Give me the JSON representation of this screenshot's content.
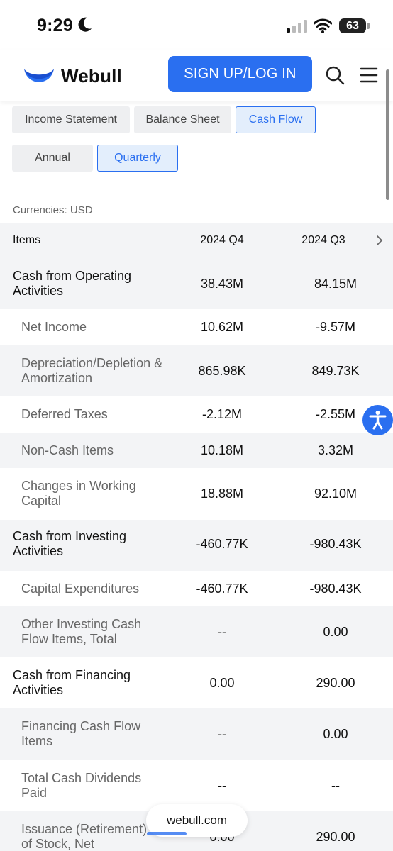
{
  "status_bar": {
    "time": "9:29",
    "battery": "63"
  },
  "header": {
    "brand": "Webull",
    "signup_label": "SIGN UP/LOG IN"
  },
  "statement_tabs": [
    "Income Statement",
    "Balance Sheet",
    "Cash Flow"
  ],
  "period_tabs": [
    "Annual",
    "Quarterly"
  ],
  "active_statement_tab": "Cash Flow",
  "active_period_tab": "Quarterly",
  "currency": "Currencies: USD",
  "table": {
    "header": {
      "items": "Items",
      "col1": "2024 Q4",
      "col2": "2024 Q3"
    },
    "rows": [
      {
        "label": "Cash from Operating Activities",
        "q4": "38.43M",
        "q3": "84.15M"
      },
      {
        "label": "Net Income",
        "q4": "10.62M",
        "q3": "-9.57M"
      },
      {
        "label": "Depreciation/Depletion & Amortization",
        "q4": "865.98K",
        "q3": "849.73K"
      },
      {
        "label": "Deferred Taxes",
        "q4": "-2.12M",
        "q3": "-2.55M"
      },
      {
        "label": "Non-Cash Items",
        "q4": "10.18M",
        "q3": "3.32M"
      },
      {
        "label": "Changes in Working Capital",
        "q4": "18.88M",
        "q3": "92.10M"
      },
      {
        "label": "Cash from Investing Activities",
        "q4": "-460.77K",
        "q3": "-980.43K"
      },
      {
        "label": "Capital Expenditures",
        "q4": "-460.77K",
        "q3": "-980.43K"
      },
      {
        "label": "Other Investing Cash Flow Items, Total",
        "q4": "--",
        "q3": "0.00"
      },
      {
        "label": "Cash from Financing Activities",
        "q4": "0.00",
        "q3": "290.00"
      },
      {
        "label": "Financing Cash Flow Items",
        "q4": "--",
        "q3": "0.00"
      },
      {
        "label": "Total Cash Dividends Paid",
        "q4": "--",
        "q3": "--"
      },
      {
        "label": "Issuance (Retirement) of Stock, Net",
        "q4": "0.00",
        "q3": "290.00"
      }
    ]
  },
  "url_bar": {
    "domain": "webull.com"
  },
  "colors": {
    "accent": "#2a6ff0",
    "row_alt": "#f3f4f6",
    "sub_text": "#666666"
  }
}
